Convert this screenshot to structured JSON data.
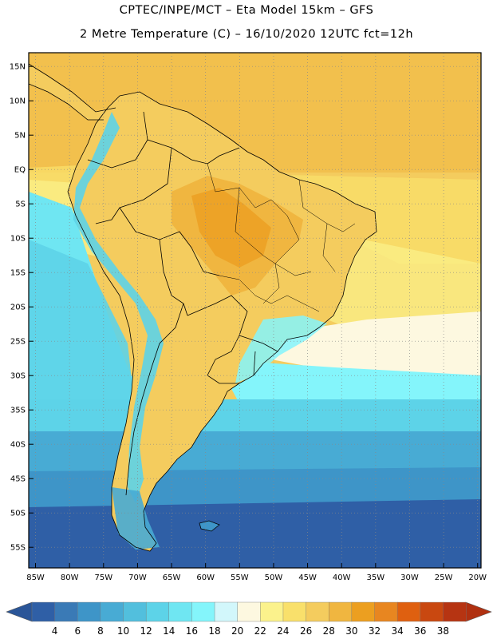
{
  "header": {
    "line1": "CPTEC/INPE/MCT –  Eta Model 15km – GFS",
    "line2": "2 Metre Temperature (C) – 16/10/2020 12UTC fct=12h"
  },
  "map": {
    "region": "South America",
    "lon_range": [
      -86,
      -19.5
    ],
    "lat_range": [
      17,
      -58
    ],
    "lat_ticks": [
      "15N",
      "10N",
      "5N",
      "EQ",
      "5S",
      "10S",
      "15S",
      "20S",
      "25S",
      "30S",
      "35S",
      "40S",
      "45S",
      "50S",
      "55S"
    ],
    "lon_ticks": [
      "85W",
      "80W",
      "75W",
      "70W",
      "65W",
      "60W",
      "55W",
      "50W",
      "45W",
      "40W",
      "35W",
      "30W",
      "25W",
      "20W"
    ],
    "grid": true
  },
  "colorbar": {
    "labels": [
      "4",
      "6",
      "8",
      "10",
      "12",
      "14",
      "16",
      "18",
      "20",
      "22",
      "24",
      "26",
      "28",
      "30",
      "32",
      "34",
      "36",
      "38"
    ],
    "colors": [
      "#2f5fa6",
      "#3a7ab6",
      "#3e95c8",
      "#48abd4",
      "#52bfdd",
      "#5dd3e8",
      "#6fe6f2",
      "#84f5fb",
      "#d2f7fb",
      "#fdf8e0",
      "#fbf28c",
      "#f9e06b",
      "#f4cc5e",
      "#f0b640",
      "#ec9f20",
      "#e88620",
      "#df6010",
      "#c94810",
      "#b63412"
    ],
    "under_color": "#2a5598",
    "over_color": "#b03010"
  }
}
